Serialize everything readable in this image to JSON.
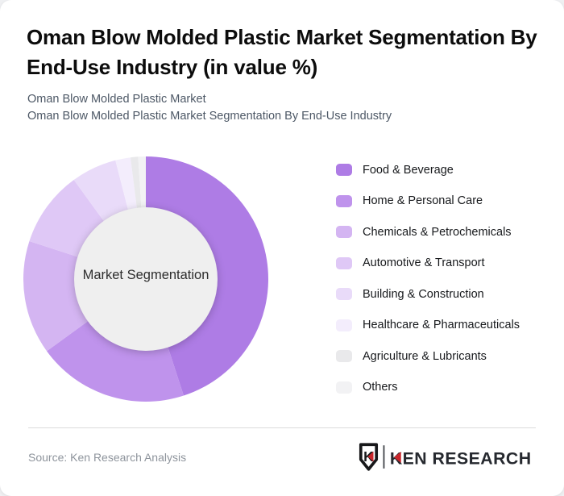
{
  "title": {
    "line1": "Oman Blow Molded Plastic Market Segmentation By",
    "line2": "End-Use Industry (in value %)"
  },
  "subtitle": {
    "line1": "Oman Blow Molded Plastic Market",
    "line2": "Oman Blow Molded Plastic Market Segmentation By End-Use Industry"
  },
  "chart_data": {
    "type": "pie",
    "variant": "donut",
    "title": "Oman Blow Molded Plastic Market Segmentation By End-Use Industry (in value %)",
    "center_label": "Market Segmentation",
    "unit": "% of market value",
    "start_angle_deg": 0,
    "direction": "clockwise",
    "legend_position": "right",
    "categories": [
      "Food & Beverage",
      "Home & Personal Care",
      "Chemicals & Petrochemicals",
      "Automotive & Transport",
      "Building & Construction",
      "Healthcare & Pharmaceuticals",
      "Agriculture & Lubricants",
      "Others"
    ],
    "values": [
      45,
      20,
      15,
      10,
      6,
      2,
      1,
      1
    ],
    "colors": [
      "#ae7ce5",
      "#bf93ec",
      "#d4b5f2",
      "#dfc8f6",
      "#e9dbf9",
      "#f3edfc",
      "#e9e9eb",
      "#f2f2f4"
    ],
    "center_fill": "#efefef"
  },
  "footer": {
    "source": "Source: Ken Research Analysis",
    "logo": {
      "badge_letter": "K",
      "wordmark": "KEN RESEARCH",
      "accent_color": "#c9252b",
      "text_color": "#26292f"
    }
  }
}
